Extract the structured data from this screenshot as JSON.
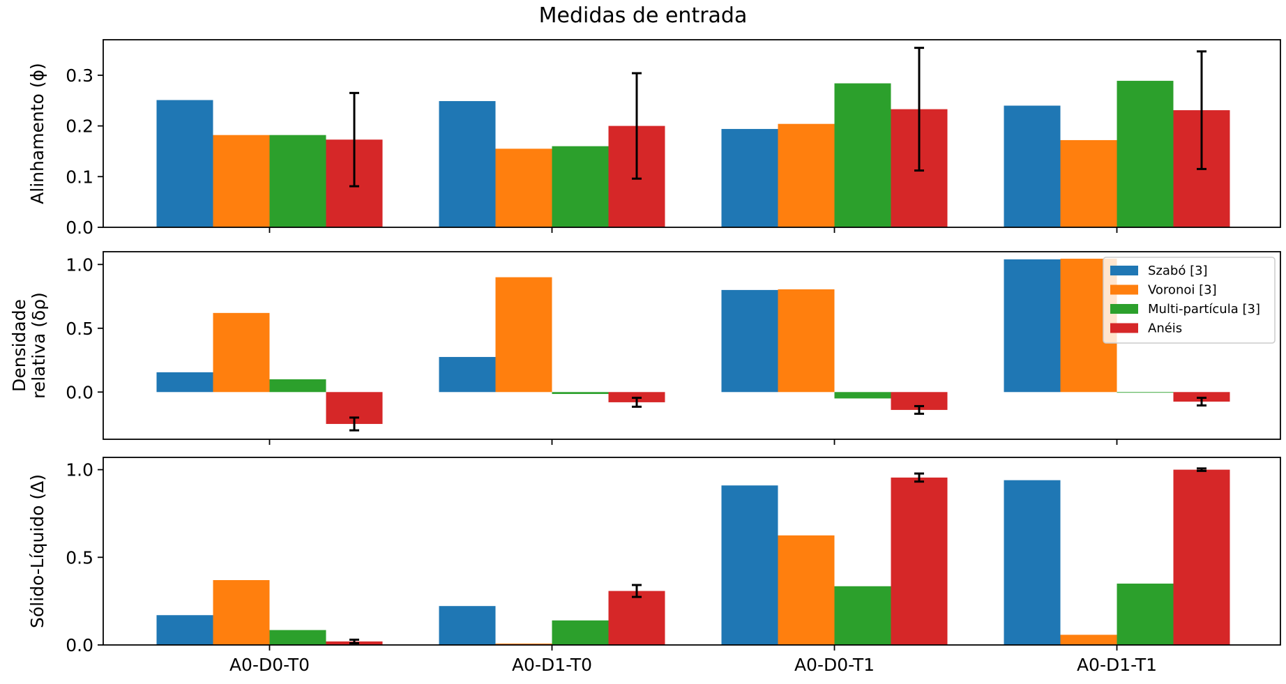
{
  "chart_data": {
    "type": "bar",
    "title": "Medidas de entrada",
    "categories": [
      "A0-D0-T0",
      "A0-D1-T0",
      "A0-D0-T1",
      "A0-D1-T1"
    ],
    "legend": {
      "placement": "top-right of middle panel",
      "entries": [
        "Szabó [3]",
        "Voronoi [3]",
        "Multi-partícula [3]",
        "Anéis"
      ]
    },
    "colors": [
      "#1f77b4",
      "#ff7f0e",
      "#2ca02c",
      "#d62728"
    ],
    "panels": [
      {
        "ylabel": [
          "Alinhamento (ϕ)"
        ],
        "ylim": [
          0,
          0.37
        ],
        "yticks": [
          0.0,
          0.1,
          0.2,
          0.3
        ],
        "ytick_labels": [
          "0.0",
          "0.1",
          "0.2",
          "0.3"
        ],
        "show_xtick_labels": false,
        "series": [
          {
            "name": "Szabó [3]",
            "values": [
              0.251,
              0.249,
              0.194,
              0.24
            ]
          },
          {
            "name": "Voronoi [3]",
            "values": [
              0.182,
              0.155,
              0.204,
              0.172
            ]
          },
          {
            "name": "Multi-partícula [3]",
            "values": [
              0.182,
              0.16,
              0.284,
              0.289
            ]
          },
          {
            "name": "Anéis",
            "values": [
              0.173,
              0.2,
              0.233,
              0.231
            ],
            "errors": [
              0.092,
              0.104,
              0.121,
              0.116
            ]
          }
        ]
      },
      {
        "ylabel": [
          "Densidade",
          "relativa (δρ)"
        ],
        "ylim": [
          -0.37,
          1.1
        ],
        "yticks": [
          0.0,
          0.5,
          1.0
        ],
        "ytick_labels": [
          "0.0",
          "0.5",
          "1.0"
        ],
        "show_xtick_labels": false,
        "series": [
          {
            "name": "Szabó [3]",
            "values": [
              0.155,
              0.275,
              0.8,
              1.04
            ]
          },
          {
            "name": "Voronoi [3]",
            "values": [
              0.62,
              0.9,
              0.805,
              1.045
            ]
          },
          {
            "name": "Multi-partícula [3]",
            "values": [
              0.1,
              -0.015,
              -0.05,
              -0.005
            ]
          },
          {
            "name": "Anéis",
            "values": [
              -0.25,
              -0.08,
              -0.14,
              -0.075
            ],
            "errors": [
              0.05,
              0.035,
              0.03,
              0.03
            ]
          }
        ]
      },
      {
        "ylabel": [
          "Sólido-Líquido (Δ)"
        ],
        "ylim": [
          0,
          1.07
        ],
        "yticks": [
          0.0,
          0.5,
          1.0
        ],
        "ytick_labels": [
          "0.0",
          "0.5",
          "1.0"
        ],
        "show_xtick_labels": true,
        "series": [
          {
            "name": "Szabó [3]",
            "values": [
              0.17,
              0.222,
              0.91,
              0.94
            ]
          },
          {
            "name": "Voronoi [3]",
            "values": [
              0.37,
              0.008,
              0.625,
              0.058
            ]
          },
          {
            "name": "Multi-partícula [3]",
            "values": [
              0.085,
              0.14,
              0.335,
              0.35
            ]
          },
          {
            "name": "Anéis",
            "values": [
              0.02,
              0.308,
              0.955,
              1.0
            ],
            "errors": [
              0.01,
              0.034,
              0.023,
              0.007
            ]
          }
        ]
      }
    ],
    "grid": false
  }
}
